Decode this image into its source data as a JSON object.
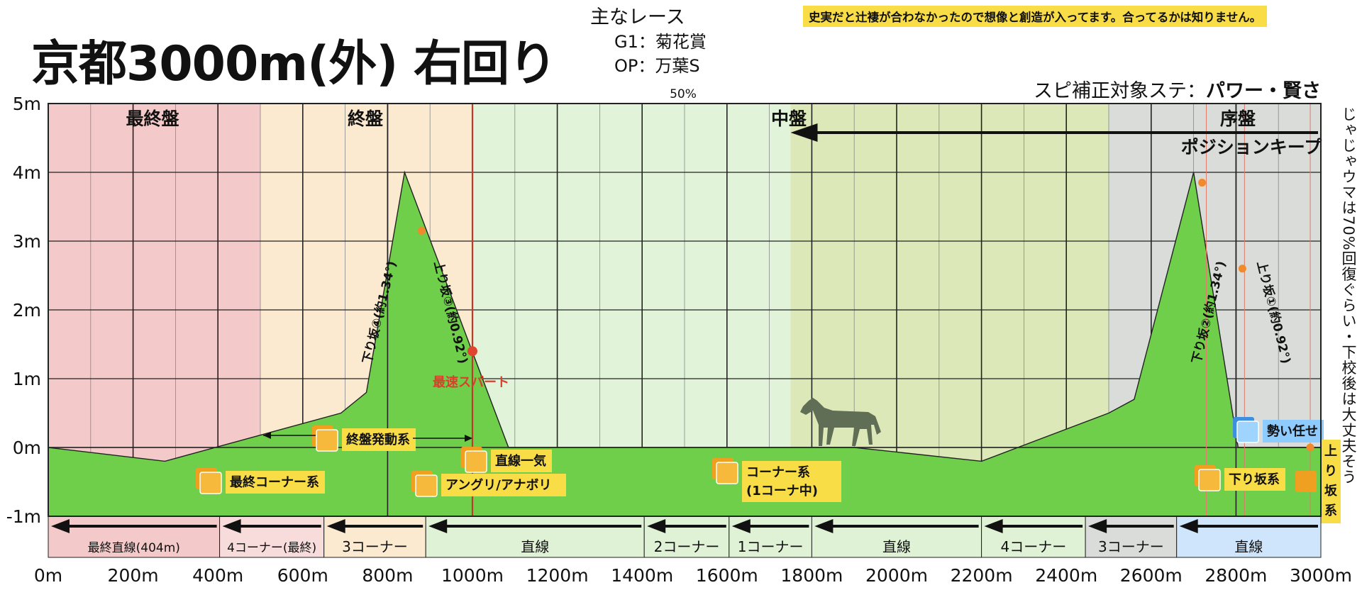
{
  "title": "京都3000m(外) 右回り",
  "main_races": {
    "heading": "主なレース",
    "items": [
      "G1：菊花賞",
      "OP：万葉S"
    ]
  },
  "notice": "史実だと辻褄が合わなかったので想像と創造が入ってます。合ってるかは知りません。",
  "speed_stat": {
    "label": "スピ補正対象ステ：",
    "value": "パワー・賢さ"
  },
  "side_note": "じゃじゃウマは70%回復ぐらい・下校後は大丈夫そう",
  "colors": {
    "final_section": "#f4c9c9",
    "late_section": "#fbead0",
    "mid_section": "#e1f3d8",
    "mid_position_keep": "#dde8b8",
    "early_section": "#d9dcd9",
    "elevation_fill": "#6fcf4a",
    "spurt_line": "#c0392b",
    "corner_straight_band": "#dff2d6",
    "label_bg": "#f9dd47"
  },
  "chart_data": {
    "type": "area",
    "title": "京都3000m(外) 右回り",
    "xlabel": "",
    "ylabel": "",
    "xlim": [
      0,
      3000
    ],
    "ylim": [
      -1,
      5
    ],
    "x_ticks": [
      "0m",
      "200m",
      "400m",
      "600m",
      "800m",
      "1000m",
      "1200m",
      "1400m",
      "1600m",
      "1800m",
      "2000m",
      "2200m",
      "2400m",
      "2600m",
      "2800m",
      "3000m"
    ],
    "y_ticks": [
      "5m",
      "4m",
      "3m",
      "2m",
      "1m",
      "0m",
      "-1m"
    ],
    "x_direction": "reversed",
    "elevation": {
      "x": [
        0,
        275,
        690,
        750,
        840,
        1085,
        1900,
        2200,
        2500,
        2560,
        2700,
        2805,
        3000
      ],
      "y": [
        0,
        -0.2,
        0.5,
        0.8,
        4.0,
        0.0,
        0.0,
        -0.2,
        0.5,
        0.7,
        4.0,
        0.0,
        0.0
      ]
    },
    "sections": [
      {
        "label": "最終盤",
        "from": 0,
        "to": 500,
        "color": "#f4c9c9"
      },
      {
        "label": "終盤",
        "from": 500,
        "to": 1000,
        "color": "#fbead0"
      },
      {
        "label": "中盤",
        "from": 1000,
        "to": 2500,
        "color": "#e1f3d8"
      },
      {
        "label": "序盤",
        "from": 2500,
        "to": 3000,
        "color": "#d9dcd9"
      }
    ],
    "position_keep": {
      "label": "ポジションキープ",
      "from": 1750,
      "to": 3000
    },
    "midpoint_label": "50%",
    "spurt": {
      "label": "最速スパート",
      "x": 1000
    },
    "slopes": [
      {
        "label": "下り坂④(約1.34°)",
        "x": 790
      },
      {
        "label": "上り坂③(約0.92°)",
        "x": 935
      },
      {
        "label": "下り坂②(約1.34°)",
        "x": 2745
      },
      {
        "label": "上り坂①(約0.92°)",
        "x": 2880
      }
    ],
    "track": [
      {
        "label": "最終直線(404m)",
        "from": 0,
        "to": 404
      },
      {
        "label": "4コーナー(最終)",
        "from": 404,
        "to": 650
      },
      {
        "label": "3コーナー",
        "from": 650,
        "to": 890
      },
      {
        "label": "直線",
        "from": 890,
        "to": 1405
      },
      {
        "label": "2コーナー",
        "from": 1405,
        "to": 1605
      },
      {
        "label": "1コーナー",
        "from": 1605,
        "to": 1800
      },
      {
        "label": "直線",
        "from": 1800,
        "to": 2200
      },
      {
        "label": "4コーナー",
        "from": 2200,
        "to": 2445
      },
      {
        "label": "3コーナー",
        "from": 2445,
        "to": 2660
      },
      {
        "label": "直線",
        "from": 2660,
        "to": 3000
      }
    ],
    "skills": [
      {
        "label": "終盤発動系",
        "x": 570
      },
      {
        "label": "最終コーナー系",
        "x": 420
      },
      {
        "label": "直線一気",
        "x": 1060
      },
      {
        "label": "アングリ/アナボリ",
        "x": 900
      },
      {
        "label": "コーナー系\n(1コーナ中)",
        "x": 1650
      },
      {
        "label": "勢い任せ",
        "x": 2920
      },
      {
        "label": "下り坂系",
        "x": 2780
      },
      {
        "label": "上り坂系",
        "x": 2980
      }
    ]
  }
}
